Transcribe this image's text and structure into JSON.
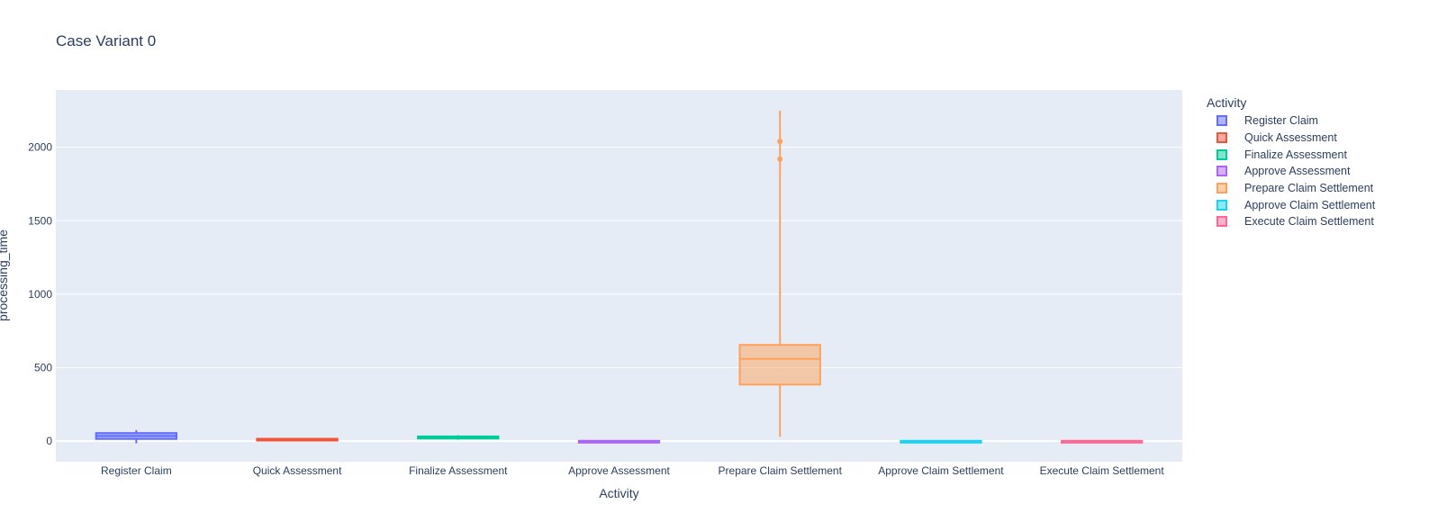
{
  "chart_data": {
    "type": "box",
    "title": "Case Variant 0",
    "xlabel": "Activity",
    "ylabel": "processing_time",
    "ylim": [
      -140,
      2390
    ],
    "yticks": [
      0,
      500,
      1000,
      1500,
      2000
    ],
    "grid": true,
    "legend_title": "Activity",
    "legend_position": "top-right",
    "categories": [
      "Register Claim",
      "Quick Assessment",
      "Finalize Assessment",
      "Approve Assessment",
      "Prepare Claim Settlement",
      "Approve Claim Settlement",
      "Execute Claim Settlement"
    ],
    "series": [
      {
        "name": "Register Claim",
        "color": "#636efa",
        "min": -15,
        "q1": 15,
        "median": 35,
        "q3": 55,
        "max": 75,
        "outliers": []
      },
      {
        "name": "Quick Assessment",
        "color": "#ef553b",
        "min": 5,
        "q1": 8,
        "median": 12,
        "q3": 16,
        "max": 20,
        "outliers": []
      },
      {
        "name": "Finalize Assessment",
        "color": "#00cc96",
        "min": 10,
        "q1": 18,
        "median": 25,
        "q3": 32,
        "max": 40,
        "outliers": []
      },
      {
        "name": "Approve Assessment",
        "color": "#ab63fa",
        "min": 0,
        "q1": 0,
        "median": 1,
        "q3": 2,
        "max": 3,
        "outliers": []
      },
      {
        "name": "Prepare Claim Settlement",
        "color": "#ffa15a",
        "min": 30,
        "q1": 385,
        "median": 560,
        "q3": 655,
        "max": 2250,
        "outliers": [
          1920,
          2040
        ]
      },
      {
        "name": "Approve Claim Settlement",
        "color": "#19d3f3",
        "min": 0,
        "q1": 0,
        "median": 1,
        "q3": 2,
        "max": 3,
        "outliers": []
      },
      {
        "name": "Execute Claim Settlement",
        "color": "#ff6692",
        "min": 0,
        "q1": 0,
        "median": 1,
        "q3": 2,
        "max": 3,
        "outliers": []
      }
    ]
  }
}
